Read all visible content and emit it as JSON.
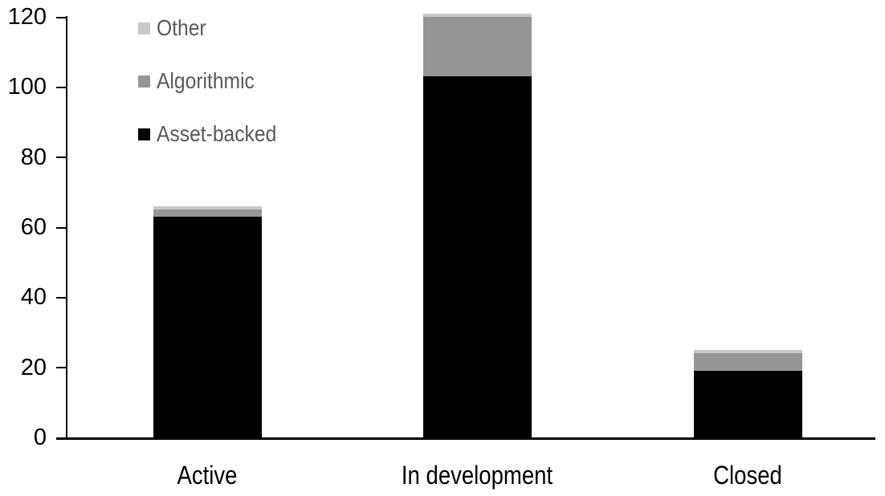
{
  "chart_data": {
    "type": "bar",
    "stacked": true,
    "title": "",
    "xlabel": "",
    "ylabel": "",
    "categories": [
      "Active",
      "In development",
      "Closed"
    ],
    "series": [
      {
        "name": "Asset-backed",
        "color": "#000000",
        "values": [
          63,
          103,
          19
        ]
      },
      {
        "name": "Algorithmic",
        "color": "#969696",
        "values": [
          2,
          17,
          5
        ]
      },
      {
        "name": "Other",
        "color": "#c9c9c9",
        "values": [
          1,
          1,
          1
        ]
      }
    ],
    "totals": [
      66,
      121,
      25
    ],
    "ylim": [
      0,
      120
    ],
    "yticks": [
      0,
      20,
      40,
      60,
      80,
      100,
      120
    ],
    "grid": false,
    "legend_position": "top-left-inside",
    "legend_items": [
      {
        "label": "Other",
        "color": "#c9c9c9"
      },
      {
        "label": "Algorithmic",
        "color": "#969696"
      },
      {
        "label": "Asset-backed",
        "color": "#000000"
      }
    ],
    "colors": {
      "axis": "#000000",
      "tick_label_text": "#000000",
      "category_label_text": "#000000",
      "legend_text": "#595959"
    }
  }
}
